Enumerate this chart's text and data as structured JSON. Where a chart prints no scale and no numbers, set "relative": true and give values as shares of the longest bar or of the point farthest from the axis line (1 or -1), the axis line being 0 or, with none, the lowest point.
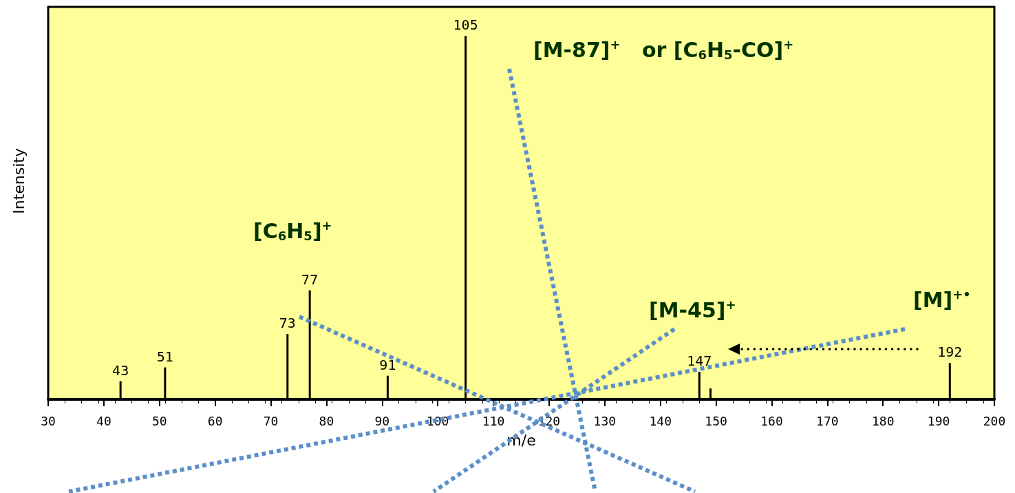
{
  "chart_data": {
    "type": "bar",
    "xlabel": "m/e",
    "ylabel": "Intensity",
    "relative": true,
    "color": "#000000",
    "x": [
      43,
      51,
      73,
      77,
      91,
      105,
      147,
      149,
      192
    ],
    "values": [
      0.05,
      0.088,
      0.18,
      0.3,
      0.065,
      1,
      0.076,
      0.03,
      0.1
    ],
    "xlim": [
      30,
      200
    ],
    "xticks": [
      30,
      40,
      50,
      60,
      70,
      80,
      90,
      100,
      110,
      120,
      130,
      140,
      150,
      160,
      170,
      180,
      190,
      200
    ],
    "annotations": [
      "[M-87]$^{+}$   or [C$_{6}$H$_{5}$-CO]$^{+}$",
      "[C$_{6}$H$_{5}$]$^{+}$",
      "[M-45]$^{+}$",
      "[M]$^{+•}$",
      {
        "text": "43",
        "x": 43,
        "y": 0.05
      },
      {
        "text": "51",
        "x": 51,
        "y": 0.088
      },
      {
        "text": "73",
        "x": 73,
        "y": 0.18
      },
      {
        "text": "77",
        "x": 77,
        "y": 0.3
      },
      {
        "text": "91",
        "x": 91,
        "y": 0.065
      },
      {
        "text": "105",
        "x": 105,
        "y": 1
      },
      {
        "text": "147",
        "x": 147,
        "y": 0.076
      },
      {
        "text": "192",
        "x": 192,
        "y": 0.1
      }
    ]
  }
}
